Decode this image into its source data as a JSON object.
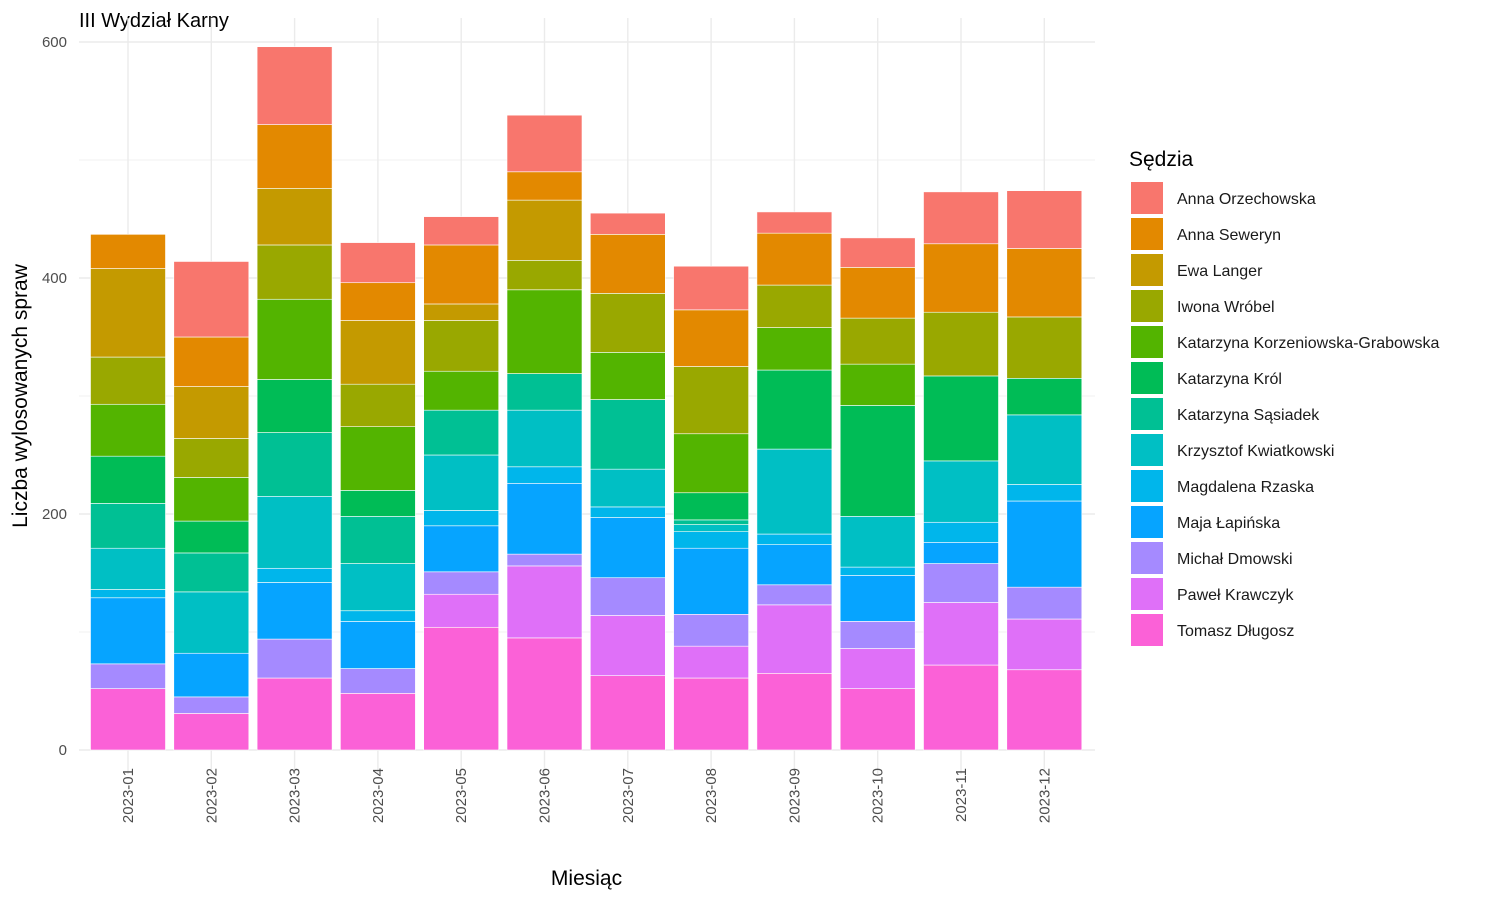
{
  "chart_data": {
    "type": "bar",
    "stacked": true,
    "title": "III Wydział Karny",
    "xlabel": "Miesiąc",
    "ylabel": "Liczba wylosowanych spraw",
    "ylim": [
      0,
      600
    ],
    "yticks": [
      0,
      200,
      400,
      600
    ],
    "grid": true,
    "legend_title": "Sędzia",
    "legend_position": "right",
    "categories": [
      "2023-01",
      "2023-02",
      "2023-03",
      "2023-04",
      "2023-05",
      "2023-06",
      "2023-07",
      "2023-08",
      "2023-09",
      "2023-10",
      "2023-11",
      "2023-12"
    ],
    "series": [
      {
        "name": "Anna Orzechowska",
        "color": "#F8766D",
        "values": [
          0,
          64,
          66,
          34,
          24,
          48,
          18,
          37,
          18,
          25,
          44,
          49
        ]
      },
      {
        "name": "Anna Seweryn",
        "color": "#E38900",
        "values": [
          29,
          42,
          54,
          32,
          50,
          24,
          50,
          48,
          44,
          43,
          58,
          58
        ]
      },
      {
        "name": "Ewa Langer",
        "color": "#C49A00",
        "values": [
          75,
          44,
          48,
          54,
          14,
          51,
          0,
          0,
          0,
          0,
          0,
          0
        ]
      },
      {
        "name": "Iwona Wróbel",
        "color": "#99A800",
        "values": [
          40,
          33,
          46,
          36,
          43,
          25,
          50,
          57,
          36,
          39,
          54,
          52
        ]
      },
      {
        "name": "Katarzyna Korzeniowska-Grabowska",
        "color": "#53B400",
        "values": [
          44,
          37,
          68,
          54,
          33,
          71,
          40,
          50,
          36,
          35,
          0,
          0
        ]
      },
      {
        "name": "Katarzyna Król",
        "color": "#00BC56",
        "values": [
          40,
          27,
          45,
          22,
          0,
          0,
          0,
          23,
          67,
          94,
          72,
          31
        ]
      },
      {
        "name": "Katarzyna Sąsiadek",
        "color": "#00C094",
        "values": [
          38,
          33,
          54,
          40,
          38,
          31,
          59,
          4,
          0,
          0,
          0,
          0
        ]
      },
      {
        "name": "Krzysztof Kwiatkowski",
        "color": "#00BFC4",
        "values": [
          35,
          52,
          61,
          40,
          47,
          48,
          32,
          6,
          72,
          43,
          52,
          59
        ]
      },
      {
        "name": "Magdalena Rzaska",
        "color": "#00B6EB",
        "values": [
          7,
          0,
          12,
          9,
          13,
          14,
          9,
          14,
          9,
          7,
          17,
          14
        ]
      },
      {
        "name": "Maja Łapińska",
        "color": "#06A4FF",
        "values": [
          56,
          37,
          48,
          40,
          39,
          60,
          51,
          56,
          34,
          39,
          18,
          73
        ]
      },
      {
        "name": "Michał Dmowski",
        "color": "#A58AFF",
        "values": [
          21,
          14,
          33,
          21,
          19,
          10,
          32,
          27,
          17,
          23,
          33,
          27
        ]
      },
      {
        "name": "Paweł Krawczyk",
        "color": "#DF70F8",
        "values": [
          0,
          0,
          0,
          0,
          28,
          61,
          51,
          27,
          58,
          34,
          53,
          43
        ]
      },
      {
        "name": "Tomasz Długosz",
        "color": "#FB61D7",
        "values": [
          52,
          31,
          61,
          48,
          104,
          95,
          63,
          61,
          65,
          52,
          72,
          68
        ]
      }
    ]
  }
}
